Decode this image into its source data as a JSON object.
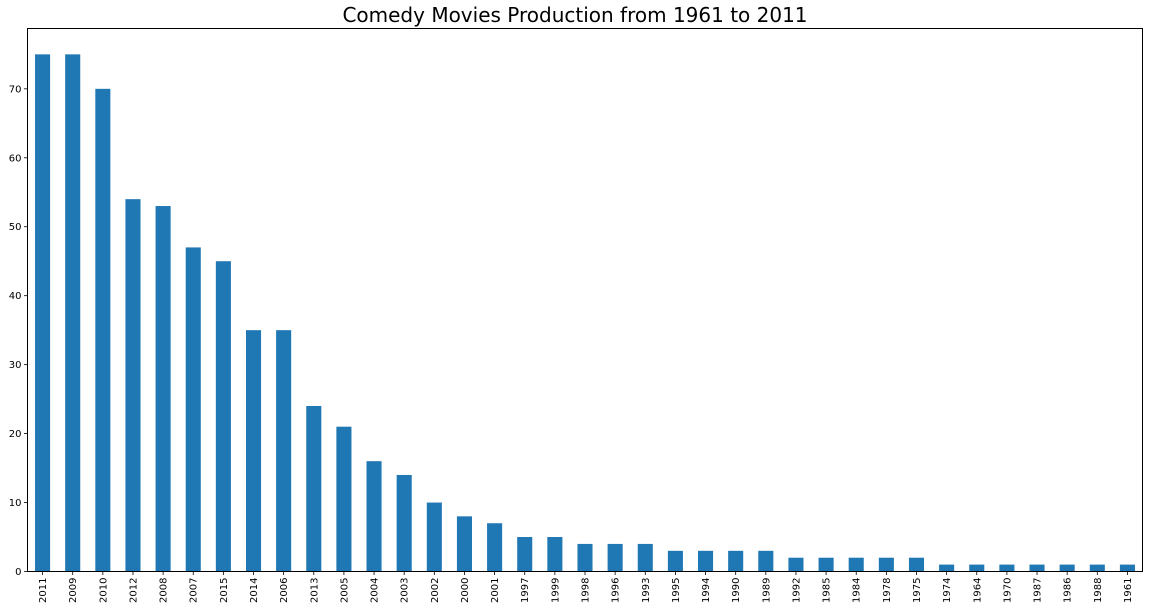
{
  "chart_data": {
    "type": "bar",
    "title": "Comedy Movies Production from 1961 to 2011",
    "xlabel": "",
    "ylabel": "",
    "categories": [
      "2011",
      "2009",
      "2010",
      "2012",
      "2008",
      "2007",
      "2015",
      "2014",
      "2006",
      "2013",
      "2005",
      "2004",
      "2003",
      "2002",
      "2000",
      "2001",
      "1997",
      "1999",
      "1998",
      "1996",
      "1993",
      "1995",
      "1994",
      "1990",
      "1989",
      "1992",
      "1985",
      "1984",
      "1978",
      "1975",
      "1974",
      "1964",
      "1970",
      "1987",
      "1986",
      "1988",
      "1961"
    ],
    "values": [
      75,
      75,
      70,
      54,
      53,
      47,
      45,
      35,
      35,
      24,
      21,
      16,
      14,
      10,
      8,
      7,
      5,
      5,
      4,
      4,
      4,
      3,
      3,
      3,
      3,
      2,
      2,
      2,
      2,
      2,
      1,
      1,
      1,
      1,
      1,
      1,
      1
    ],
    "ylim": [
      0,
      78.75
    ],
    "yticks": [
      0,
      10,
      20,
      30,
      40,
      50,
      60,
      70
    ],
    "bar_color": "#1f77b4",
    "grid": false,
    "legend": "none"
  }
}
